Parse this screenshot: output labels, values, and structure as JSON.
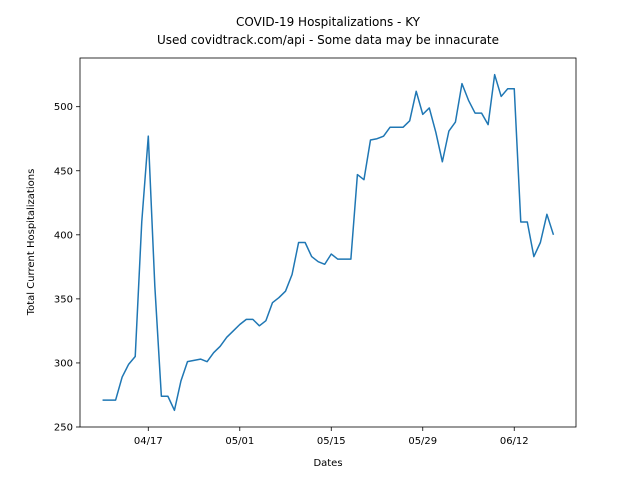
{
  "chart_data": {
    "type": "line",
    "title": "COVID-19 Hospitalizations - KY",
    "subtitle": "Used covidtrack.com/api - Some data may be innacurate",
    "x_label": "Dates",
    "y_label": "Total Current Hospitalizations",
    "x": [
      "04/10",
      "04/11",
      "04/12",
      "04/13",
      "04/14",
      "04/15",
      "04/16",
      "04/17",
      "04/18",
      "04/19",
      "04/20",
      "04/21",
      "04/22",
      "04/23",
      "04/24",
      "04/25",
      "04/26",
      "04/27",
      "04/28",
      "04/29",
      "04/30",
      "05/01",
      "05/02",
      "05/03",
      "05/04",
      "05/05",
      "05/06",
      "05/07",
      "05/08",
      "05/09",
      "05/10",
      "05/11",
      "05/12",
      "05/13",
      "05/14",
      "05/15",
      "05/16",
      "05/17",
      "05/18",
      "05/19",
      "05/20",
      "05/21",
      "05/22",
      "05/23",
      "05/24",
      "05/25",
      "05/26",
      "05/27",
      "05/28",
      "05/29",
      "05/30",
      "05/31",
      "06/01",
      "06/02",
      "06/03",
      "06/04",
      "06/05",
      "06/06",
      "06/07",
      "06/08",
      "06/09",
      "06/10",
      "06/11",
      "06/12",
      "06/13",
      "06/14",
      "06/15",
      "06/16",
      "06/17",
      "06/18"
    ],
    "values": [
      271,
      271,
      271,
      289,
      299,
      305,
      410,
      477,
      360,
      274,
      274,
      263,
      286,
      301,
      302,
      303,
      301,
      308,
      313,
      320,
      325,
      330,
      334,
      334,
      329,
      333,
      347,
      351,
      356,
      369,
      394,
      394,
      383,
      379,
      377,
      385,
      381,
      381,
      381,
      447,
      443,
      474,
      475,
      477,
      484,
      484,
      484,
      489,
      512,
      494,
      499,
      480,
      457,
      481,
      488,
      518,
      505,
      495,
      495,
      486,
      525,
      508,
      514,
      514,
      410,
      410,
      383,
      394,
      416,
      400
    ],
    "color": "#1f77b4",
    "xticks": [
      "04/17",
      "05/01",
      "05/15",
      "05/29",
      "06/12"
    ],
    "ylim": [
      250,
      538
    ],
    "yticks": [
      250,
      300,
      350,
      400,
      450,
      500
    ]
  }
}
